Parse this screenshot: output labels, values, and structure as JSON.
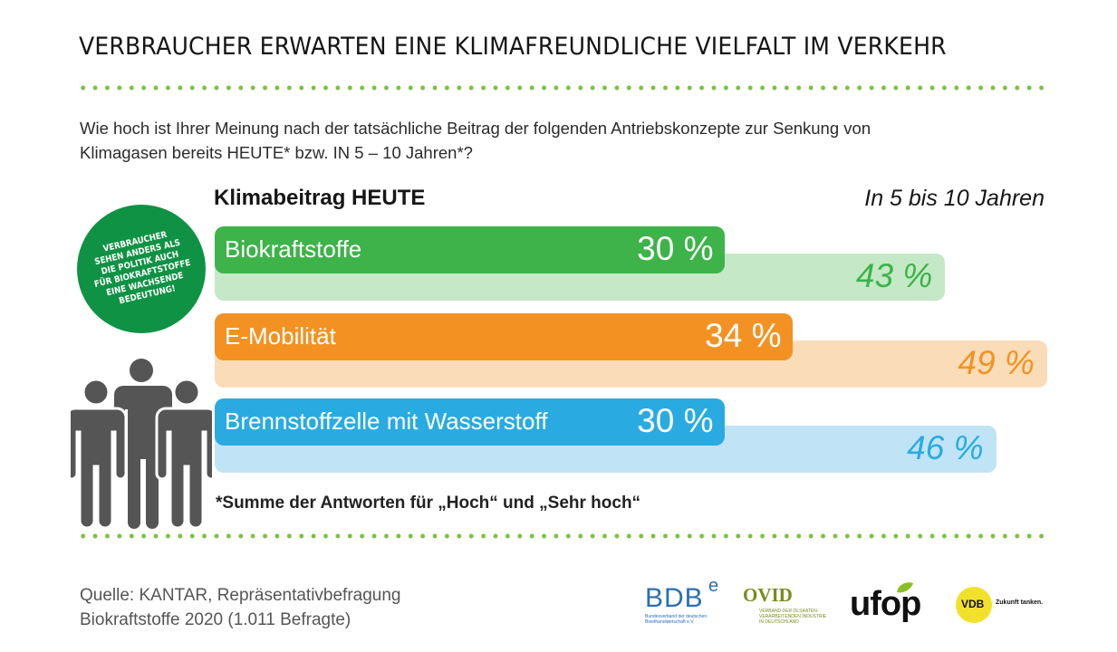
{
  "title": "VERBRAUCHER ERWARTEN EINE KLIMAFREUNDLICHE VIELFALT IM VERKEHR",
  "question_line1": "Wie hoch ist Ihrer Meinung nach der tatsächliche Beitrag der folgenden Antriebskonzepte zur Senkung von",
  "question_line2": "Klimagasen bereits HEUTE* bzw. IN 5 – 10 Jahren*?",
  "badge": {
    "lines": [
      "VERBRAUCHER",
      "SEHEN ANDERS ALS",
      "DIE POLITIK AUCH",
      "FÜR BIOKRAFTSTOFFE",
      "EINE WACHSENDE",
      "BEDEUTUNG!"
    ]
  },
  "footnote": "*Summe der Antworten für „Hoch“ und „Sehr hoch“",
  "source_line1": "Quelle: KANTAR, Repräsentativbefragung",
  "source_line2": "Biokraftstoffe 2020 (1.011 Befragte)",
  "logos": {
    "bdb": "BDB",
    "bdb_sup": "e",
    "bdb_sub1": "Bundesverband der deutschen",
    "bdb_sub2": "Bioethanolwirtschaft e.V.",
    "ovid": "OVID",
    "ovid_sub1": "VERBAND DER ÖLSAATEN-",
    "ovid_sub2": "VERARBEITENDEN INDUSTRIE",
    "ovid_sub3": "IN DEUTSCHLAND",
    "ufop": "ufop",
    "vdb": "VDB",
    "vdb_tag": "Zukunft tanken."
  },
  "colors": {
    "accent_green": "#7cc142",
    "badge_green": "#109244"
  },
  "chart_data": {
    "type": "bar",
    "orientation": "horizontal",
    "categories": [
      "Biokraftstoffe",
      "E-Mobilität",
      "Brennstoffzelle mit Wasserstoff"
    ],
    "series": [
      {
        "name": "Klimabeitrag HEUTE",
        "values": [
          30,
          34,
          30
        ],
        "labels": [
          "30 %",
          "34 %",
          "30 %"
        ],
        "colors": [
          "#3db349",
          "#f39222",
          "#29abe2"
        ]
      },
      {
        "name": "In 5 bis 10 Jahren",
        "values": [
          43,
          49,
          46
        ],
        "labels": [
          "43 %",
          "49 %",
          "46 %"
        ],
        "colors": [
          "#c5e8c6",
          "#fbdcb8",
          "#c0e4f5"
        ],
        "text_colors": [
          "#3db349",
          "#f39222",
          "#29abe2"
        ]
      }
    ],
    "unit": "%",
    "xlim": [
      0,
      49
    ],
    "grid": false
  }
}
